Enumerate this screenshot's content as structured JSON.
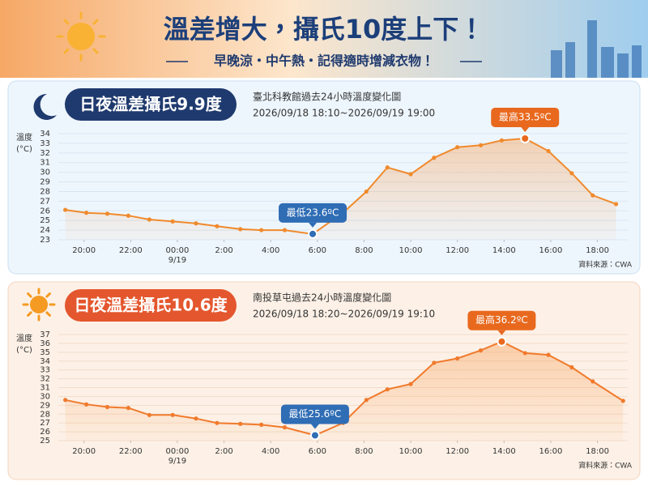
{
  "header": {
    "title": "溫差增大，攝氏10度上下！",
    "subtitle": "早晚涼・中午熱・記得適時增減衣物！"
  },
  "chart_data": [
    {
      "type": "line",
      "title": "日夜溫差攝氏9.9度",
      "subtitle": "臺北科教館過去24小時溫度變化圖",
      "period": "2026/09/18 18:10~2026/09/19 19:00",
      "ylabel": [
        "溫度",
        "(°C)"
      ],
      "source": "資料來源：CWA",
      "theme": "night",
      "badge_color": "#1f3a6e",
      "color": "#f08a2c",
      "x": [
        19.2,
        20.1,
        21.0,
        21.9,
        22.8,
        23.8,
        24.8,
        25.7,
        26.7,
        27.6,
        28.6,
        29.8,
        31.1,
        32.1,
        33.0,
        34.0,
        35.0,
        36.0,
        37.0,
        37.9,
        38.9,
        39.9,
        40.9,
        41.8,
        42.8
      ],
      "values": [
        26.1,
        25.8,
        25.7,
        25.5,
        25.1,
        24.9,
        24.7,
        24.4,
        24.1,
        24.0,
        24.0,
        23.6,
        25.8,
        28.0,
        30.5,
        29.8,
        31.5,
        32.6,
        32.8,
        33.3,
        33.5,
        32.2,
        29.9,
        27.6,
        26.7
      ],
      "xlim": [
        18.9,
        43.3
      ],
      "ylim": [
        23,
        34
      ],
      "yticks": [
        23,
        24,
        25,
        26,
        27,
        28,
        29,
        30,
        31,
        32,
        33,
        34
      ],
      "xticks": [
        {
          "value": 20,
          "label": "20:00"
        },
        {
          "value": 22,
          "label": "22:00"
        },
        {
          "value": 24,
          "label": "00:00"
        },
        {
          "value": 26,
          "label": "2:00"
        },
        {
          "value": 28,
          "label": "4:00"
        },
        {
          "value": 30,
          "label": "6:00"
        },
        {
          "value": 32,
          "label": "8:00"
        },
        {
          "value": 34,
          "label": "10:00"
        },
        {
          "value": 36,
          "label": "12:00"
        },
        {
          "value": 38,
          "label": "14:00"
        },
        {
          "value": 40,
          "label": "16:00"
        },
        {
          "value": 42,
          "label": "18:00"
        }
      ],
      "date_label": {
        "value": 24,
        "label": "9/19"
      },
      "grid": true,
      "annotations": [
        {
          "text": "最低23.6ºC",
          "x": 29.8,
          "color": "#2f6db5"
        },
        {
          "text": "最高33.5ºC",
          "x": 38.9,
          "color": "#e8691e"
        }
      ]
    },
    {
      "type": "line",
      "title": "日夜溫差攝氏10.6度",
      "subtitle": "南投草屯過去24小時溫度變化圖",
      "period": "2026/09/18 18:20~2026/09/19 19:10",
      "ylabel": [
        "溫度",
        "(°C)"
      ],
      "source": "資料來源：CWA",
      "theme": "day",
      "badge_color": "#e4572e",
      "color": "#f07a2c",
      "x": [
        19.2,
        20.1,
        21.0,
        21.9,
        22.8,
        23.8,
        24.8,
        25.7,
        26.7,
        27.6,
        28.6,
        29.9,
        31.1,
        32.1,
        33.0,
        34.0,
        35.0,
        36.0,
        37.0,
        37.9,
        38.9,
        39.9,
        40.9,
        41.8,
        43.1
      ],
      "values": [
        29.6,
        29.1,
        28.8,
        28.7,
        27.9,
        27.9,
        27.5,
        27.0,
        26.9,
        26.8,
        26.5,
        25.6,
        27.0,
        29.6,
        30.8,
        31.4,
        33.8,
        34.3,
        35.2,
        36.2,
        34.9,
        34.7,
        33.3,
        31.7,
        29.5
      ],
      "xlim": [
        18.9,
        43.3
      ],
      "ylim": [
        25,
        37
      ],
      "yticks": [
        25,
        26,
        27,
        28,
        29,
        30,
        31,
        32,
        33,
        34,
        35,
        36,
        37
      ],
      "xticks": [
        {
          "value": 20,
          "label": "20:00"
        },
        {
          "value": 22,
          "label": "22:00"
        },
        {
          "value": 24,
          "label": "00:00"
        },
        {
          "value": 26,
          "label": "2:00"
        },
        {
          "value": 28,
          "label": "4:00"
        },
        {
          "value": 30,
          "label": "6:00"
        },
        {
          "value": 32,
          "label": "8:00"
        },
        {
          "value": 34,
          "label": "10:00"
        },
        {
          "value": 36,
          "label": "12:00"
        },
        {
          "value": 38,
          "label": "14:00"
        },
        {
          "value": 40,
          "label": "16:00"
        },
        {
          "value": 42,
          "label": "18:00"
        }
      ],
      "date_label": {
        "value": 24,
        "label": "9/19"
      },
      "grid": true,
      "annotations": [
        {
          "text": "最低25.6ºC",
          "x": 29.9,
          "color": "#2f6db5"
        },
        {
          "text": "最高36.2ºC",
          "x": 37.9,
          "color": "#e8691e"
        }
      ]
    }
  ]
}
